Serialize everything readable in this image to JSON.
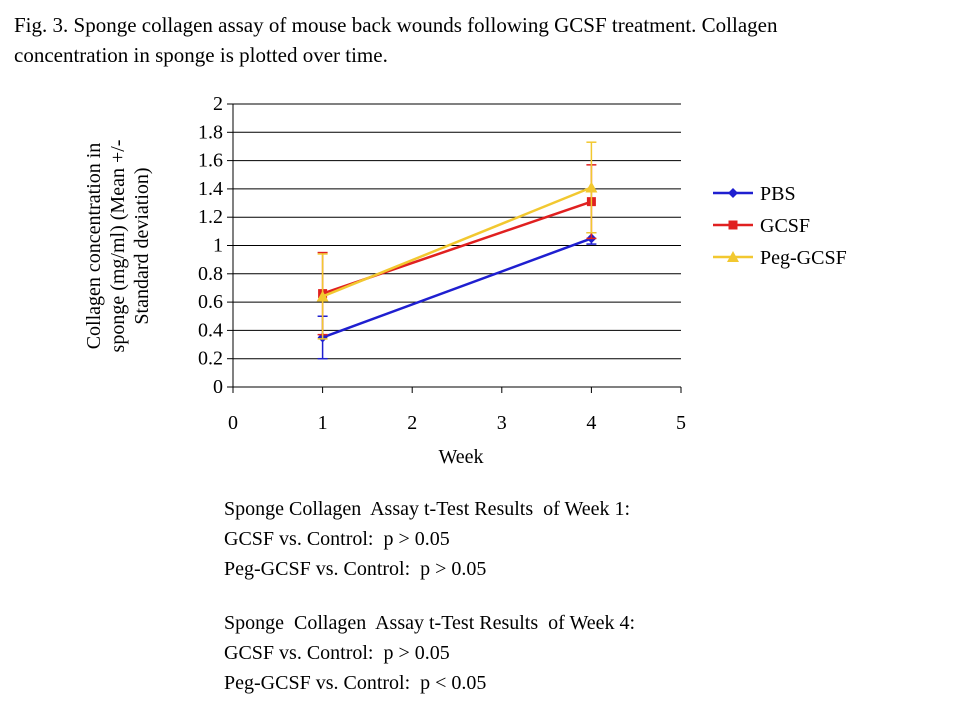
{
  "caption": {
    "line1": "Fig. 3. Sponge collagen  assay of mouse back wounds following  GCSF treatment.  Collagen",
    "line2": "concentration  in sponge is plotted over time."
  },
  "chart_data": {
    "type": "line",
    "title": "",
    "xlabel": "Week",
    "ylabel_lines": [
      "Collagen  concentration  in",
      "sponge (mg/ml)  (Mean +/-",
      "Standard deviation)"
    ],
    "xlim": [
      0,
      5
    ],
    "ylim": [
      0,
      2
    ],
    "x_ticks": [
      "0",
      "1",
      "2",
      "3",
      "4",
      "5"
    ],
    "y_ticks": [
      "0",
      "0.2",
      "0.4",
      "0.6",
      "0.8",
      "1",
      "1.2",
      "1.4",
      "1.6",
      "1.8",
      "2"
    ],
    "grid": "horizontal",
    "legend_position": "right",
    "series": [
      {
        "name": "PBS",
        "color": "#1f1fd0",
        "marker": "diamond",
        "x": [
          1,
          4
        ],
        "values": [
          0.35,
          1.05
        ],
        "error": [
          0.15,
          0.04
        ]
      },
      {
        "name": "GCSF",
        "color": "#e02020",
        "marker": "square",
        "x": [
          1,
          4
        ],
        "values": [
          0.66,
          1.31
        ],
        "error": [
          0.29,
          0.26
        ]
      },
      {
        "name": "Peg-GCSF",
        "color": "#f2c830",
        "marker": "triangle",
        "x": [
          1,
          4
        ],
        "values": [
          0.64,
          1.41
        ],
        "error": [
          0.3,
          0.32
        ]
      }
    ]
  },
  "results": {
    "week1": {
      "heading": "Sponge Collagen  Assay t-Test Results  of Week 1:",
      "row1": "GCSF vs. Control:  p > 0.05",
      "row2": "Peg-GCSF vs. Control:  p > 0.05"
    },
    "week4": {
      "heading": "Sponge  Collagen  Assay t-Test Results  of Week 4:",
      "row1": "GCSF vs. Control:  p > 0.05",
      "row2": "Peg-GCSF vs. Control:  p < 0.05"
    }
  }
}
